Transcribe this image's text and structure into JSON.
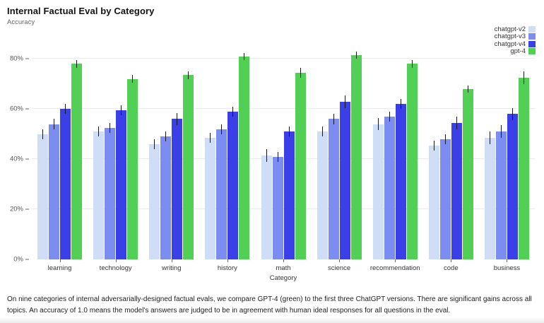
{
  "header": {
    "title": "Internal Factual Eval by Category",
    "subtitle": "Accuracy"
  },
  "caption": {
    "text": "On nine categories of internal adversarially-designed factual evals, we compare GPT-4 (green) to the first three ChatGPT versions. There are significant gains across all topics. An accuracy of 1.0 means the model's answers are judged to be in agreement with human ideal responses for all questions in the eval."
  },
  "chart_data": {
    "type": "bar",
    "title": "Internal Factual Eval by Category",
    "ylabel": "Accuracy",
    "xlabel": "Category",
    "categories": [
      "learning",
      "technology",
      "writing",
      "history",
      "math",
      "science",
      "recommendation",
      "code",
      "business"
    ],
    "y_ticks": [
      "0%",
      "20%",
      "40%",
      "60%",
      "80%"
    ],
    "y_tick_values": [
      0,
      20,
      40,
      60,
      80
    ],
    "ylim": [
      0,
      88
    ],
    "value_unit": "percent_accuracy",
    "grid": true,
    "error_bars": true,
    "legend_position": "top-right",
    "series": [
      {
        "name": "chatgpt-v2",
        "color": "#cfddf6",
        "values": [
          50,
          51,
          46,
          48.5,
          41.5,
          51,
          54,
          45.5,
          48.5
        ],
        "errors": [
          2,
          2,
          2,
          2,
          2.5,
          2,
          2.5,
          2,
          2.5
        ]
      },
      {
        "name": "chatgpt-v3",
        "color": "#7b8df0",
        "values": [
          54,
          52.5,
          49,
          52,
          41,
          56,
          57,
          48,
          51
        ],
        "errors": [
          2,
          2,
          2,
          2,
          2,
          2,
          2,
          2,
          2.5
        ]
      },
      {
        "name": "chatgpt-v4",
        "color": "#3a3fe8",
        "values": [
          60,
          59.5,
          56,
          59,
          51,
          63,
          62,
          54.5,
          58
        ],
        "errors": [
          2,
          2,
          2.5,
          2,
          2,
          2.5,
          2,
          2.5,
          2.5
        ]
      },
      {
        "name": "gpt-4",
        "color": "#52d055",
        "values": [
          78,
          72,
          73.5,
          81,
          74.5,
          81.5,
          78,
          68,
          72.5
        ],
        "errors": [
          1.5,
          1.5,
          1.5,
          1.5,
          2,
          1.5,
          1.5,
          1.5,
          2.5
        ]
      }
    ]
  }
}
